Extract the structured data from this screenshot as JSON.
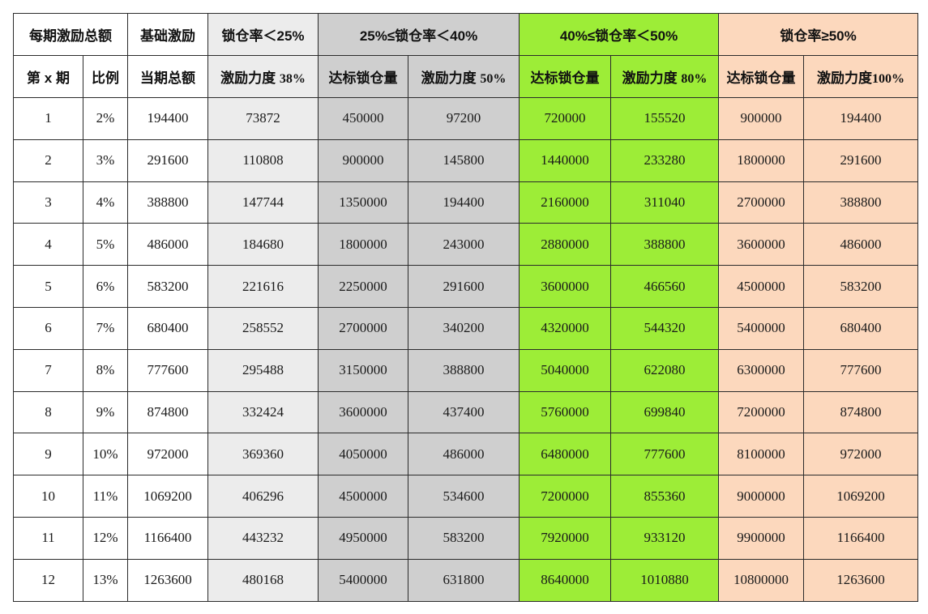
{
  "header_row1": {
    "total": "每期激励总额",
    "base": "基础激励",
    "g1": "锁仓率＜25%",
    "g2": "25%≤锁仓率＜40%",
    "g3": "40%≤锁仓率＜50%",
    "g4": "锁仓率≥50%"
  },
  "header_row2": {
    "period": "第 x 期",
    "ratio": "比例",
    "current_total": "当期总额",
    "g1_force": "激励力度",
    "g1_force_pct": "38%",
    "g2_target": "达标锁仓量",
    "g2_force": "激励力度",
    "g2_force_pct": "50%",
    "g3_target": "达标锁仓量",
    "g3_force": "激励力度",
    "g3_force_pct": "80%",
    "g4_target": "达标锁仓量",
    "g4_force": "激励力度",
    "g4_force_pct": "100%"
  },
  "rows": [
    [
      "1",
      "2%",
      "194400",
      "73872",
      "450000",
      "97200",
      "720000",
      "155520",
      "900000",
      "194400"
    ],
    [
      "2",
      "3%",
      "291600",
      "110808",
      "900000",
      "145800",
      "1440000",
      "233280",
      "1800000",
      "291600"
    ],
    [
      "3",
      "4%",
      "388800",
      "147744",
      "1350000",
      "194400",
      "2160000",
      "311040",
      "2700000",
      "388800"
    ],
    [
      "4",
      "5%",
      "486000",
      "184680",
      "1800000",
      "243000",
      "2880000",
      "388800",
      "3600000",
      "486000"
    ],
    [
      "5",
      "6%",
      "583200",
      "221616",
      "2250000",
      "291600",
      "3600000",
      "466560",
      "4500000",
      "583200"
    ],
    [
      "6",
      "7%",
      "680400",
      "258552",
      "2700000",
      "340200",
      "4320000",
      "544320",
      "5400000",
      "680400"
    ],
    [
      "7",
      "8%",
      "777600",
      "295488",
      "3150000",
      "388800",
      "5040000",
      "622080",
      "6300000",
      "777600"
    ],
    [
      "8",
      "9%",
      "874800",
      "332424",
      "3600000",
      "437400",
      "5760000",
      "699840",
      "7200000",
      "874800"
    ],
    [
      "9",
      "10%",
      "972000",
      "369360",
      "4050000",
      "486000",
      "6480000",
      "777600",
      "8100000",
      "972000"
    ],
    [
      "10",
      "11%",
      "1069200",
      "406296",
      "4500000",
      "534600",
      "7200000",
      "855360",
      "9000000",
      "1069200"
    ],
    [
      "11",
      "12%",
      "1166400",
      "443232",
      "4950000",
      "583200",
      "7920000",
      "933120",
      "9900000",
      "1166400"
    ],
    [
      "12",
      "13%",
      "1263600",
      "480168",
      "5400000",
      "631800",
      "8640000",
      "1010880",
      "10800000",
      "1263600"
    ]
  ],
  "colors": {
    "tier1": "#ececec",
    "tier2": "#cfcfcf",
    "tier3": "#9ded37",
    "tier4": "#fcd8bd",
    "border": "#2b2b2b"
  }
}
